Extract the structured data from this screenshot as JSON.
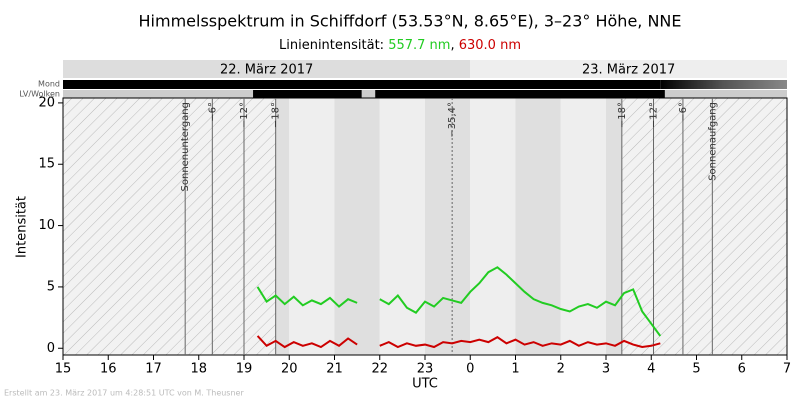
{
  "chart_data": {
    "type": "line",
    "title": "Himmelsspektrum in Schiffdorf (53.53°N, 8.65°E), 3–23° Höhe, NNE",
    "subtitle": "Linienintensität:",
    "y_label": "Intensität",
    "x_label": "UTC",
    "date_labels": [
      "22. März 2017",
      "23. März 2017"
    ],
    "row_labels": [
      "Mond",
      "LV/Wolken"
    ],
    "footer": "Erstellt am 23. März 2017 um 4:28:51 UTC von M. Theusner",
    "annotations": [
      {
        "x": 17.7,
        "label": "Sonnenuntergang"
      },
      {
        "x": 18.3,
        "label": "−6°"
      },
      {
        "x": 19.0,
        "label": "−12°"
      },
      {
        "x": 19.7,
        "label": "−18°"
      },
      {
        "x": 23.6,
        "label": "−35,4°"
      },
      {
        "x": 27.35,
        "label": "−18°"
      },
      {
        "x": 28.05,
        "label": "−12°"
      },
      {
        "x": 28.7,
        "label": "−6°"
      },
      {
        "x": 29.35,
        "label": "Sonnenaufgang"
      }
    ],
    "x": [
      19.3,
      19.5,
      19.7,
      19.9,
      20.1,
      20.3,
      20.5,
      20.7,
      20.9,
      21.1,
      21.3,
      21.5,
      21.8,
      22.0,
      22.2,
      22.4,
      22.6,
      22.8,
      23.0,
      23.2,
      23.4,
      23.6,
      23.8,
      24.0,
      24.2,
      24.4,
      24.6,
      24.8,
      25.0,
      25.2,
      25.4,
      25.6,
      25.8,
      26.0,
      26.2,
      26.4,
      26.6,
      26.8,
      27.0,
      27.2,
      27.4,
      27.6,
      27.8,
      28.0,
      28.2
    ],
    "series": [
      {
        "name": "557.7 nm",
        "color": "#22cc22",
        "values": [
          5.0,
          3.8,
          4.3,
          3.6,
          4.2,
          3.5,
          3.9,
          3.6,
          4.1,
          3.4,
          4.0,
          3.7,
          null,
          4.0,
          3.6,
          4.3,
          3.3,
          2.9,
          3.8,
          3.4,
          4.1,
          3.9,
          3.7,
          4.6,
          5.3,
          6.2,
          6.6,
          6.0,
          5.3,
          4.6,
          4.0,
          3.7,
          3.5,
          3.2,
          3.0,
          3.4,
          3.6,
          3.3,
          3.8,
          3.5,
          4.5,
          4.8,
          3.0,
          2.0,
          1.0
        ]
      },
      {
        "name": "630.0 nm",
        "color": "#cc0000",
        "values": [
          1.0,
          0.2,
          0.6,
          0.1,
          0.5,
          0.2,
          0.4,
          0.1,
          0.6,
          0.2,
          0.8,
          0.3,
          null,
          0.2,
          0.5,
          0.1,
          0.4,
          0.2,
          0.3,
          0.1,
          0.5,
          0.4,
          0.6,
          0.5,
          0.7,
          0.5,
          0.9,
          0.4,
          0.7,
          0.3,
          0.5,
          0.2,
          0.4,
          0.3,
          0.6,
          0.2,
          0.5,
          0.3,
          0.4,
          0.2,
          0.6,
          0.3,
          0.1,
          0.2,
          0.4
        ]
      }
    ],
    "xlim": [
      15,
      31
    ],
    "xticks": [
      15,
      16,
      17,
      18,
      19,
      20,
      21,
      22,
      23,
      {
        "value": 24,
        "label": "0"
      },
      {
        "value": 25,
        "label": "1"
      },
      {
        "value": 26,
        "label": "2"
      },
      {
        "value": 27,
        "label": "3"
      },
      {
        "value": 28,
        "label": "4"
      },
      {
        "value": 29,
        "label": "5"
      },
      {
        "value": 30,
        "label": "6"
      },
      {
        "value": 31,
        "label": "7"
      }
    ],
    "ylim": [
      -0.55,
      20.4
    ],
    "yticks": [
      0,
      5,
      10,
      15,
      20
    ],
    "grid": false
  }
}
